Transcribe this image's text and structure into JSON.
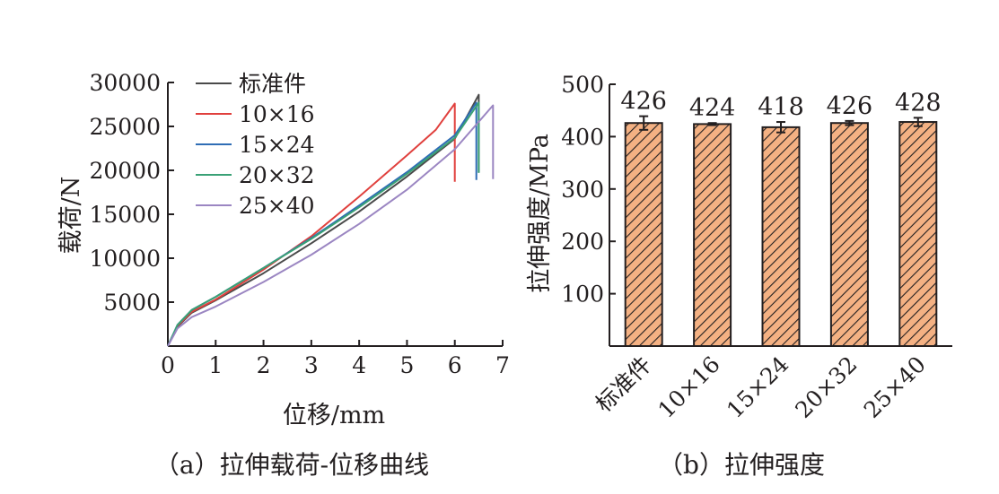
{
  "chart_data": [
    {
      "type": "line",
      "xlabel": "位移/mm",
      "ylabel": "载荷/N",
      "caption": "（a）拉伸载荷-位移曲线",
      "xlim": [
        0,
        7
      ],
      "ylim": [
        0,
        30000
      ],
      "xticks": [
        0,
        1,
        2,
        3,
        4,
        5,
        6,
        7
      ],
      "yticks": [
        5000,
        10000,
        15000,
        20000,
        25000,
        30000
      ],
      "legend_position": "top-right",
      "series": [
        {
          "name": "标准件",
          "color": "#4a4a4a",
          "x": [
            0,
            0.2,
            0.5,
            1.0,
            2.0,
            3.0,
            4.0,
            5.0,
            6.0,
            6.5,
            6.5
          ],
          "y": [
            0,
            2200,
            3800,
            5200,
            8300,
            11700,
            15300,
            19300,
            23600,
            28600,
            19800
          ]
        },
        {
          "name": "10×16",
          "color": "#e0403d",
          "x": [
            0,
            0.2,
            0.5,
            1.0,
            2.0,
            3.0,
            4.0,
            5.0,
            5.6,
            6.0,
            6.0
          ],
          "y": [
            0,
            2300,
            3900,
            5300,
            8700,
            12500,
            17000,
            21700,
            24600,
            27600,
            18700
          ]
        },
        {
          "name": "15×24",
          "color": "#2f6db5",
          "x": [
            0,
            0.2,
            0.5,
            1.0,
            2.0,
            3.0,
            4.0,
            5.0,
            6.0,
            6.45,
            6.45
          ],
          "y": [
            0,
            2400,
            4100,
            5600,
            8900,
            12300,
            16000,
            19800,
            24000,
            27700,
            18900
          ]
        },
        {
          "name": "20×32",
          "color": "#3aa176",
          "x": [
            0,
            0.2,
            0.5,
            1.0,
            2.0,
            3.0,
            4.0,
            5.0,
            6.0,
            6.5,
            6.5
          ],
          "y": [
            0,
            2400,
            4100,
            5600,
            8900,
            12200,
            15800,
            19600,
            23700,
            27700,
            19700
          ]
        },
        {
          "name": "25×40",
          "color": "#9b86c2",
          "x": [
            0,
            0.2,
            0.5,
            1.0,
            2.0,
            3.0,
            4.0,
            5.0,
            6.0,
            6.8,
            6.8
          ],
          "y": [
            0,
            2000,
            3300,
            4500,
            7300,
            10400,
            13900,
            17800,
            22400,
            27400,
            19000
          ]
        }
      ]
    },
    {
      "type": "bar",
      "ylabel": "拉伸强度/MPa",
      "caption": "（b）拉伸强度",
      "ylim": [
        0,
        500
      ],
      "yticks": [
        100,
        200,
        300,
        400,
        500
      ],
      "categories": [
        "标准件",
        "10×16",
        "15×24",
        "20×32",
        "25×40"
      ],
      "values": [
        426,
        424,
        418,
        426,
        428
      ],
      "value_labels": [
        "426",
        "424",
        "418",
        "426",
        "428"
      ],
      "error": [
        13,
        2,
        10,
        4,
        8
      ],
      "bar_color": "#f4b183",
      "bar_pattern": "diagonal-hatch"
    }
  ]
}
